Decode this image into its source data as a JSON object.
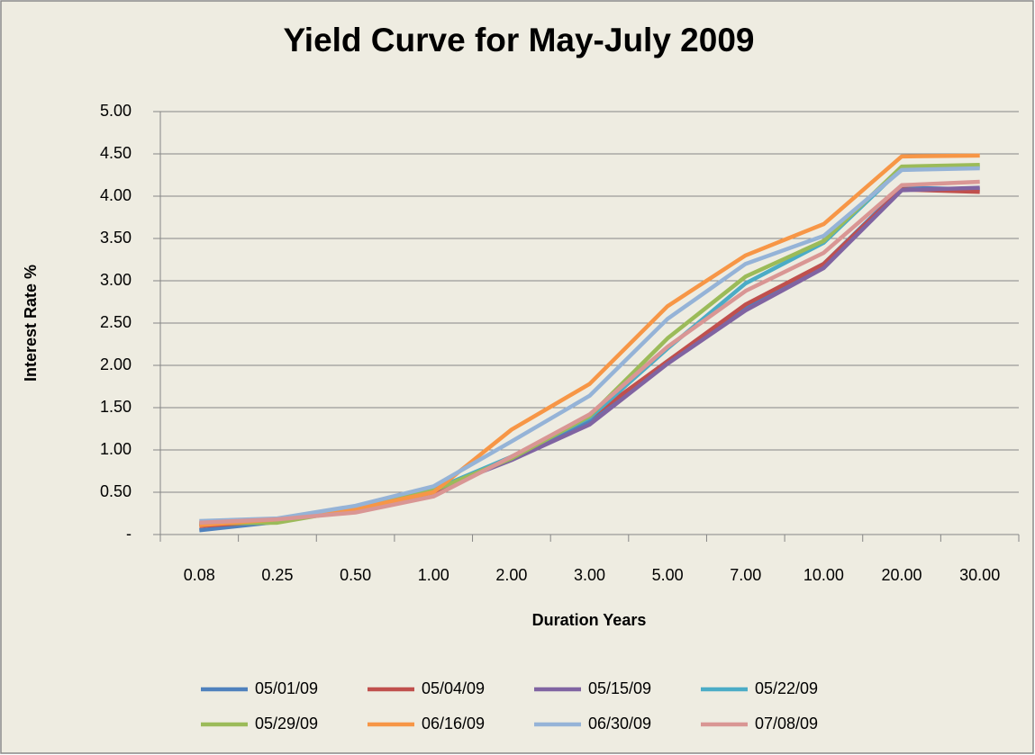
{
  "chart_data": {
    "type": "line",
    "title": "Yield Curve for May-July 2009",
    "x_label": "Duration Years",
    "y_label": "Interest Rate %",
    "categories": [
      "0.08",
      "0.25",
      "0.50",
      "1.00",
      "2.00",
      "3.00",
      "5.00",
      "7.00",
      "10.00",
      "20.00",
      "30.00"
    ],
    "series": [
      {
        "name": "05/01/09",
        "color": "#4f81bd",
        "values": [
          0.05,
          0.15,
          0.3,
          0.5,
          0.9,
          1.35,
          2.05,
          2.7,
          3.2,
          4.1,
          4.08
        ]
      },
      {
        "name": "05/04/09",
        "color": "#c0504d",
        "values": [
          0.1,
          0.16,
          0.3,
          0.5,
          0.92,
          1.38,
          2.05,
          2.72,
          3.2,
          4.08,
          4.05
        ]
      },
      {
        "name": "05/15/09",
        "color": "#8064a2",
        "values": [
          0.12,
          0.17,
          0.3,
          0.52,
          0.88,
          1.3,
          2.02,
          2.65,
          3.15,
          4.07,
          4.1
        ]
      },
      {
        "name": "05/22/09",
        "color": "#4bacc6",
        "values": [
          0.13,
          0.16,
          0.32,
          0.53,
          0.92,
          1.38,
          2.2,
          2.97,
          3.45,
          4.33,
          4.35
        ]
      },
      {
        "name": "05/29/09",
        "color": "#9bbb59",
        "values": [
          0.13,
          0.14,
          0.3,
          0.52,
          0.9,
          1.4,
          2.32,
          3.05,
          3.47,
          4.35,
          4.37
        ]
      },
      {
        "name": "06/16/09",
        "color": "#f79646",
        "values": [
          0.11,
          0.18,
          0.3,
          0.5,
          1.24,
          1.78,
          2.7,
          3.3,
          3.67,
          4.47,
          4.48
        ]
      },
      {
        "name": "06/30/09",
        "color": "#95b3d7",
        "values": [
          0.16,
          0.19,
          0.34,
          0.57,
          1.1,
          1.64,
          2.55,
          3.2,
          3.53,
          4.31,
          4.33
        ]
      },
      {
        "name": "07/08/09",
        "color": "#d99694",
        "values": [
          0.14,
          0.18,
          0.26,
          0.45,
          0.92,
          1.42,
          2.22,
          2.88,
          3.33,
          4.13,
          4.17
        ]
      }
    ],
    "ylim": [
      0,
      5
    ],
    "yticks": [
      {
        "value": 0,
        "label": "-"
      },
      {
        "value": 0.5,
        "label": "0.50"
      },
      {
        "value": 1,
        "label": "1.00"
      },
      {
        "value": 1.5,
        "label": "1.50"
      },
      {
        "value": 2,
        "label": "2.00"
      },
      {
        "value": 2.5,
        "label": "2.50"
      },
      {
        "value": 3,
        "label": "3.00"
      },
      {
        "value": 3.5,
        "label": "3.50"
      },
      {
        "value": 4,
        "label": "4.00"
      },
      {
        "value": 4.5,
        "label": "4.50"
      },
      {
        "value": 5,
        "label": "5.00"
      }
    ],
    "grid": true,
    "legend": "bottom"
  }
}
